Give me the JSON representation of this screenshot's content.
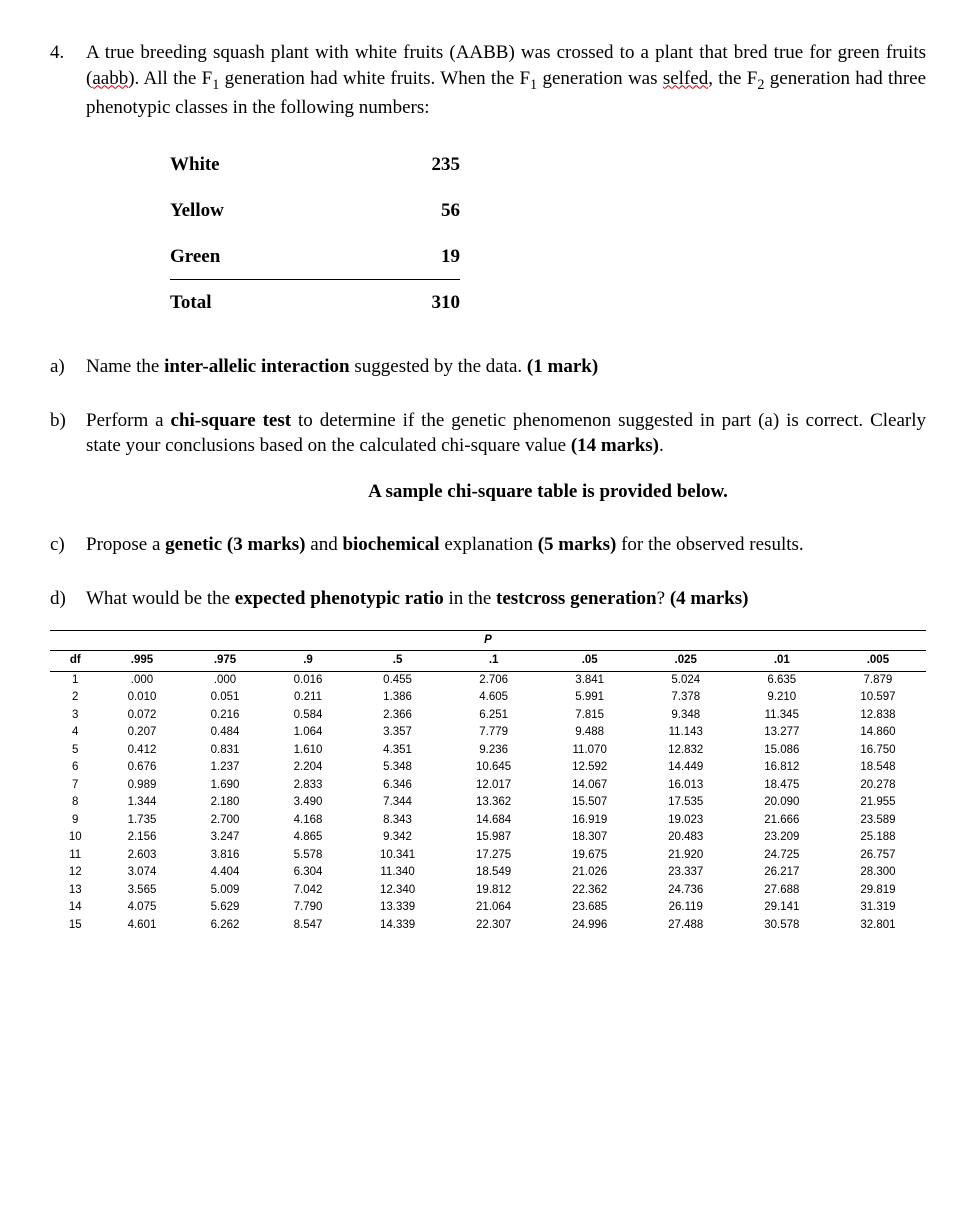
{
  "question": {
    "number": "4.",
    "intro_html": "A true breeding squash plant with white fruits (AABB) was crossed to a plant that bred true for green fruits (<span class=\"squiggle\">aabb</span>). All the F<sub>1</sub> generation had white fruits.  When the F<sub>1</sub> generation was <span class=\"squiggle\">selfed</span>, the F<sub>2</sub> generation had three phenotypic classes in the following numbers:"
  },
  "phenotypes": {
    "rows": [
      {
        "label": "White",
        "value": "235",
        "underlined": false
      },
      {
        "label": "Yellow",
        "value": "56",
        "underlined": false
      },
      {
        "label": "Green",
        "value": "19",
        "underlined": true
      },
      {
        "label": "Total",
        "value": "310",
        "underlined": false
      }
    ]
  },
  "parts": {
    "a": {
      "letter": "a)",
      "html": "Name the <span class=\"bold\">inter-allelic interaction</span> suggested by the data. <span class=\"bold\">(1 mark)</span>"
    },
    "b": {
      "letter": "b)",
      "html": "Perform a <span class=\"bold\">chi-square test</span> to determine if the genetic phenomenon suggested in part (a) is correct. Clearly state your conclusions based on the calculated chi-square value <span class=\"bold\">(14 marks)</span>."
    },
    "note": "A sample chi-square table is provided below.",
    "c": {
      "letter": "c)",
      "html": "Propose a <span class=\"bold\">genetic (3 marks)</span> and <span class=\"bold\">biochemical</span> explanation <span class=\"bold\">(5 marks)</span> for the observed results."
    },
    "d": {
      "letter": "d)",
      "html": "What would be the <span class=\"bold\">expected phenotypic ratio</span> in the <span class=\"bold\">testcross generation</span>? <span class=\"bold\">(4 marks)</span>"
    }
  },
  "chi": {
    "p_label": "P",
    "headers": [
      "df",
      ".995",
      ".975",
      ".9",
      ".5",
      ".1",
      ".05",
      ".025",
      ".01",
      ".005"
    ],
    "rows": [
      [
        "1",
        ".000",
        ".000",
        "0.016",
        "0.455",
        "2.706",
        "3.841",
        "5.024",
        "6.635",
        "7.879"
      ],
      [
        "2",
        "0.010",
        "0.051",
        "0.211",
        "1.386",
        "4.605",
        "5.991",
        "7.378",
        "9.210",
        "10.597"
      ],
      [
        "3",
        "0.072",
        "0.216",
        "0.584",
        "2.366",
        "6.251",
        "7.815",
        "9.348",
        "11.345",
        "12.838"
      ],
      [
        "4",
        "0.207",
        "0.484",
        "1.064",
        "3.357",
        "7.779",
        "9.488",
        "11.143",
        "13.277",
        "14.860"
      ],
      [
        "5",
        "0.412",
        "0.831",
        "1.610",
        "4.351",
        "9.236",
        "11.070",
        "12.832",
        "15.086",
        "16.750"
      ],
      [
        "6",
        "0.676",
        "1.237",
        "2.204",
        "5.348",
        "10.645",
        "12.592",
        "14.449",
        "16.812",
        "18.548"
      ],
      [
        "7",
        "0.989",
        "1.690",
        "2.833",
        "6.346",
        "12.017",
        "14.067",
        "16.013",
        "18.475",
        "20.278"
      ],
      [
        "8",
        "1.344",
        "2.180",
        "3.490",
        "7.344",
        "13.362",
        "15.507",
        "17.535",
        "20.090",
        "21.955"
      ],
      [
        "9",
        "1.735",
        "2.700",
        "4.168",
        "8.343",
        "14.684",
        "16.919",
        "19.023",
        "21.666",
        "23.589"
      ],
      [
        "10",
        "2.156",
        "3.247",
        "4.865",
        "9.342",
        "15.987",
        "18.307",
        "20.483",
        "23.209",
        "25.188"
      ],
      [
        "11",
        "2.603",
        "3.816",
        "5.578",
        "10.341",
        "17.275",
        "19.675",
        "21.920",
        "24.725",
        "26.757"
      ],
      [
        "12",
        "3.074",
        "4.404",
        "6.304",
        "11.340",
        "18.549",
        "21.026",
        "23.337",
        "26.217",
        "28.300"
      ],
      [
        "13",
        "3.565",
        "5.009",
        "7.042",
        "12.340",
        "19.812",
        "22.362",
        "24.736",
        "27.688",
        "29.819"
      ],
      [
        "14",
        "4.075",
        "5.629",
        "7.790",
        "13.339",
        "21.064",
        "23.685",
        "26.119",
        "29.141",
        "31.319"
      ],
      [
        "15",
        "4.601",
        "6.262",
        "8.547",
        "14.339",
        "22.307",
        "24.996",
        "27.488",
        "30.578",
        "32.801"
      ]
    ]
  }
}
